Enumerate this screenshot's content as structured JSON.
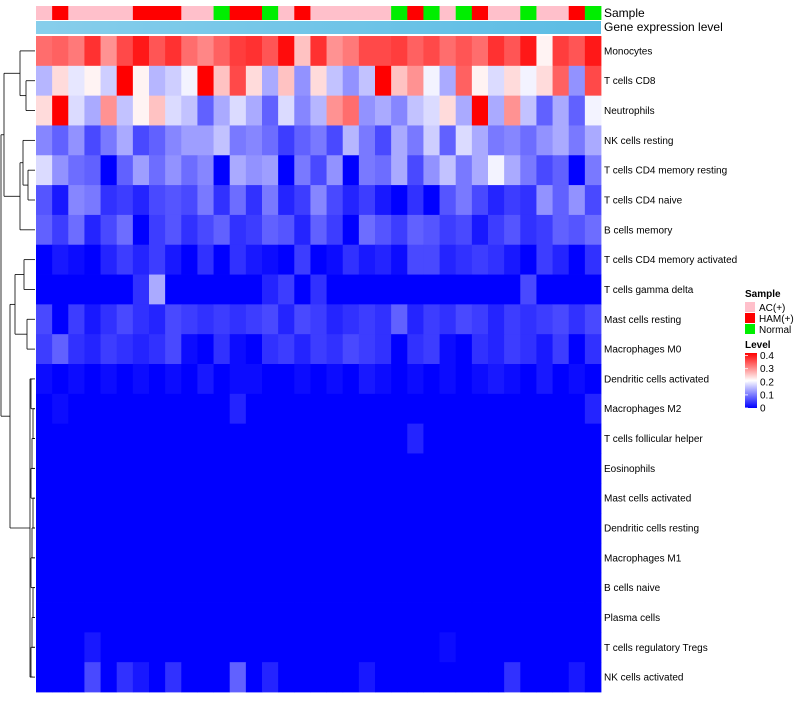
{
  "chart_data": {
    "type": "heatmap",
    "title": "",
    "colors": {
      "low": "#0000ff",
      "mid": "#ffffff",
      "high": "#ff0000",
      "gene_track": "#87ceeb",
      "gene_track_end": "#5bbce4",
      "dendrogram": "#000000"
    },
    "annotation_tracks": [
      {
        "name": "Sample"
      },
      {
        "name": "Gene expression level"
      }
    ],
    "sample_legend": {
      "title": "Sample",
      "entries": [
        {
          "label": "AC(+)",
          "color": "#ffc0cb"
        },
        {
          "label": "HAM(+)",
          "color": "#ff0000"
        },
        {
          "label": "Normal",
          "color": "#00ee00"
        }
      ]
    },
    "level_legend": {
      "title": "Level",
      "ticks": [
        "0.4",
        "0.3",
        "0.2",
        "0.1",
        "0"
      ],
      "tick_values": [
        0.4,
        0.3,
        0.2,
        0.1,
        0.0
      ],
      "range": [
        0,
        0.42
      ]
    },
    "sample_groups": [
      "AC(+)",
      "HAM(+)",
      "AC(+)",
      "AC(+)",
      "AC(+)",
      "AC(+)",
      "HAM(+)",
      "HAM(+)",
      "HAM(+)",
      "AC(+)",
      "AC(+)",
      "Normal",
      "HAM(+)",
      "HAM(+)",
      "Normal",
      "AC(+)",
      "HAM(+)",
      "AC(+)",
      "AC(+)",
      "AC(+)",
      "AC(+)",
      "AC(+)",
      "Normal",
      "HAM(+)",
      "Normal",
      "AC(+)",
      "Normal",
      "HAM(+)",
      "AC(+)",
      "AC(+)",
      "Normal",
      "AC(+)",
      "AC(+)",
      "HAM(+)",
      "Normal"
    ],
    "rows": [
      "Monocytes",
      "T cells CD8",
      "Neutrophils",
      "NK cells resting",
      "T cells CD4 memory resting",
      "T cells CD4 naive",
      "B cells memory",
      "T cells CD4 memory activated",
      "T cells gamma delta",
      "Mast cells resting",
      "Macrophages M0",
      "Dendritic cells activated",
      "Macrophages M2",
      "T cells follicular helper",
      "Eosinophils",
      "Mast cells activated",
      "Dendritic cells resting",
      "Macrophages M1",
      "B cells naive",
      "Plasma cells",
      "T cells regulatory  Tregs",
      "NK cells activated"
    ],
    "row_base": [
      0.33,
      0.16,
      0.15,
      0.12,
      0.1,
      0.08,
      0.07,
      0.03,
      0.01,
      0.06,
      0.05,
      0.01,
      0.01,
      0.01,
      0.0,
      0.0,
      0.0,
      0.0,
      0.0,
      0.0,
      0.0,
      0.01
    ],
    "values": [
      [
        0.33,
        0.34,
        0.32,
        0.38,
        0.3,
        0.36,
        0.4,
        0.35,
        0.38,
        0.33,
        0.31,
        0.34,
        0.37,
        0.38,
        0.35,
        0.41,
        0.26,
        0.38,
        0.3,
        0.32,
        0.36,
        0.36,
        0.37,
        0.34,
        0.36,
        0.33,
        0.35,
        0.33,
        0.38,
        0.35,
        0.4,
        0.22,
        0.37,
        0.35,
        0.4
      ],
      [
        0.15,
        0.24,
        0.19,
        0.22,
        0.17,
        0.42,
        0.22,
        0.15,
        0.17,
        0.2,
        0.42,
        0.26,
        0.36,
        0.24,
        0.14,
        0.26,
        0.12,
        0.24,
        0.16,
        0.12,
        0.16,
        0.42,
        0.26,
        0.3,
        0.2,
        0.14,
        0.34,
        0.22,
        0.18,
        0.24,
        0.2,
        0.24,
        0.34,
        0.12,
        0.36
      ],
      [
        0.24,
        0.42,
        0.18,
        0.14,
        0.3,
        0.16,
        0.22,
        0.26,
        0.18,
        0.16,
        0.08,
        0.14,
        0.18,
        0.14,
        0.08,
        0.18,
        0.11,
        0.15,
        0.3,
        0.33,
        0.12,
        0.14,
        0.11,
        0.16,
        0.18,
        0.24,
        0.14,
        0.42,
        0.14,
        0.3,
        0.16,
        0.08,
        0.14,
        0.08,
        0.2
      ],
      [
        0.11,
        0.08,
        0.12,
        0.06,
        0.1,
        0.14,
        0.06,
        0.08,
        0.11,
        0.13,
        0.13,
        0.16,
        0.1,
        0.11,
        0.09,
        0.05,
        0.08,
        0.1,
        0.06,
        0.15,
        0.1,
        0.06,
        0.14,
        0.1,
        0.17,
        0.08,
        0.18,
        0.14,
        0.1,
        0.11,
        0.09,
        0.12,
        0.14,
        0.1,
        0.14
      ],
      [
        0.18,
        0.12,
        0.09,
        0.08,
        0.0,
        0.08,
        0.13,
        0.09,
        0.12,
        0.09,
        0.11,
        0.0,
        0.14,
        0.12,
        0.13,
        0.0,
        0.1,
        0.06,
        0.12,
        0.0,
        0.1,
        0.09,
        0.14,
        0.06,
        0.12,
        0.16,
        0.1,
        0.14,
        0.2,
        0.14,
        0.1,
        0.06,
        0.08,
        0.0,
        0.1
      ],
      [
        0.07,
        0.02,
        0.11,
        0.1,
        0.04,
        0.05,
        0.03,
        0.06,
        0.07,
        0.06,
        0.1,
        0.04,
        0.09,
        0.04,
        0.1,
        0.03,
        0.05,
        0.11,
        0.06,
        0.03,
        0.05,
        0.02,
        0.0,
        0.04,
        0.0,
        0.07,
        0.1,
        0.06,
        0.03,
        0.05,
        0.04,
        0.12,
        0.08,
        0.12,
        0.06
      ],
      [
        0.08,
        0.05,
        0.09,
        0.03,
        0.06,
        0.09,
        0.0,
        0.05,
        0.07,
        0.04,
        0.06,
        0.08,
        0.04,
        0.05,
        0.08,
        0.07,
        0.03,
        0.08,
        0.05,
        0.0,
        0.09,
        0.07,
        0.05,
        0.08,
        0.07,
        0.05,
        0.06,
        0.02,
        0.05,
        0.07,
        0.04,
        0.05,
        0.08,
        0.07,
        0.09
      ],
      [
        0.0,
        0.02,
        0.01,
        0.0,
        0.03,
        0.05,
        0.03,
        0.05,
        0.02,
        0.0,
        0.04,
        0.0,
        0.04,
        0.02,
        0.01,
        0.0,
        0.05,
        0.0,
        0.01,
        0.04,
        0.02,
        0.03,
        0.01,
        0.06,
        0.06,
        0.03,
        0.04,
        0.05,
        0.04,
        0.02,
        0.0,
        0.05,
        0.03,
        0.0,
        0.04
      ],
      [
        0.0,
        0.0,
        0.0,
        0.0,
        0.0,
        0.0,
        0.04,
        0.14,
        0.0,
        0.0,
        0.0,
        0.0,
        0.0,
        0.0,
        0.03,
        0.05,
        0.0,
        0.04,
        0.0,
        0.0,
        0.0,
        0.0,
        0.0,
        0.0,
        0.0,
        0.0,
        0.0,
        0.0,
        0.0,
        0.0,
        0.06,
        0.0,
        0.0,
        0.0,
        0.0
      ],
      [
        0.06,
        0.0,
        0.05,
        0.02,
        0.04,
        0.06,
        0.04,
        0.03,
        0.06,
        0.05,
        0.04,
        0.05,
        0.04,
        0.05,
        0.06,
        0.03,
        0.06,
        0.05,
        0.03,
        0.04,
        0.05,
        0.04,
        0.08,
        0.03,
        0.05,
        0.04,
        0.06,
        0.05,
        0.03,
        0.05,
        0.04,
        0.05,
        0.06,
        0.04,
        0.06
      ],
      [
        0.05,
        0.08,
        0.04,
        0.03,
        0.05,
        0.04,
        0.03,
        0.04,
        0.06,
        0.01,
        0.0,
        0.04,
        0.01,
        0.0,
        0.04,
        0.05,
        0.03,
        0.05,
        0.04,
        0.06,
        0.05,
        0.04,
        0.0,
        0.04,
        0.05,
        0.01,
        0.0,
        0.04,
        0.03,
        0.05,
        0.04,
        0.02,
        0.05,
        0.0,
        0.04
      ],
      [
        0.01,
        0.0,
        0.01,
        0.0,
        0.01,
        0.0,
        0.01,
        0.0,
        0.01,
        0.0,
        0.02,
        0.0,
        0.01,
        0.01,
        0.0,
        0.0,
        0.01,
        0.0,
        0.01,
        0.0,
        0.02,
        0.01,
        0.0,
        0.01,
        0.0,
        0.01,
        0.0,
        0.01,
        0.02,
        0.01,
        0.0,
        0.02,
        0.0,
        0.01,
        0.0
      ],
      [
        0.0,
        0.01,
        0.0,
        0.0,
        0.0,
        0.0,
        0.0,
        0.0,
        0.0,
        0.0,
        0.0,
        0.0,
        0.03,
        0.0,
        0.0,
        0.0,
        0.0,
        0.0,
        0.0,
        0.0,
        0.0,
        0.0,
        0.0,
        0.0,
        0.0,
        0.0,
        0.0,
        0.0,
        0.0,
        0.0,
        0.0,
        0.0,
        0.0,
        0.0,
        0.03
      ],
      [
        0.0,
        0.0,
        0.0,
        0.0,
        0.0,
        0.0,
        0.0,
        0.0,
        0.0,
        0.0,
        0.0,
        0.0,
        0.0,
        0.0,
        0.0,
        0.0,
        0.0,
        0.0,
        0.0,
        0.0,
        0.0,
        0.0,
        0.0,
        0.03,
        0.0,
        0.0,
        0.0,
        0.0,
        0.0,
        0.0,
        0.0,
        0.0,
        0.0,
        0.0,
        0.0
      ],
      [
        0.0,
        0.0,
        0.0,
        0.0,
        0.0,
        0.0,
        0.0,
        0.0,
        0.0,
        0.0,
        0.0,
        0.0,
        0.0,
        0.0,
        0.0,
        0.0,
        0.0,
        0.0,
        0.0,
        0.0,
        0.0,
        0.0,
        0.0,
        0.0,
        0.0,
        0.0,
        0.0,
        0.0,
        0.0,
        0.0,
        0.0,
        0.0,
        0.0,
        0.0,
        0.0
      ],
      [
        0.0,
        0.0,
        0.0,
        0.0,
        0.0,
        0.0,
        0.0,
        0.0,
        0.0,
        0.0,
        0.0,
        0.0,
        0.0,
        0.0,
        0.0,
        0.0,
        0.0,
        0.0,
        0.0,
        0.0,
        0.0,
        0.0,
        0.0,
        0.0,
        0.0,
        0.0,
        0.0,
        0.0,
        0.0,
        0.0,
        0.0,
        0.0,
        0.0,
        0.0,
        0.0
      ],
      [
        0.0,
        0.0,
        0.0,
        0.0,
        0.0,
        0.0,
        0.0,
        0.0,
        0.0,
        0.0,
        0.0,
        0.0,
        0.0,
        0.0,
        0.0,
        0.0,
        0.0,
        0.0,
        0.0,
        0.0,
        0.0,
        0.0,
        0.0,
        0.0,
        0.0,
        0.0,
        0.0,
        0.0,
        0.0,
        0.0,
        0.0,
        0.0,
        0.0,
        0.0,
        0.0
      ],
      [
        0.0,
        0.0,
        0.0,
        0.0,
        0.0,
        0.0,
        0.0,
        0.0,
        0.0,
        0.0,
        0.0,
        0.0,
        0.0,
        0.0,
        0.0,
        0.0,
        0.0,
        0.0,
        0.0,
        0.0,
        0.0,
        0.0,
        0.0,
        0.0,
        0.0,
        0.0,
        0.0,
        0.0,
        0.0,
        0.0,
        0.0,
        0.0,
        0.0,
        0.0,
        0.0
      ],
      [
        0.0,
        0.0,
        0.0,
        0.0,
        0.0,
        0.0,
        0.0,
        0.0,
        0.0,
        0.0,
        0.0,
        0.0,
        0.0,
        0.0,
        0.0,
        0.0,
        0.0,
        0.0,
        0.0,
        0.0,
        0.0,
        0.0,
        0.0,
        0.0,
        0.0,
        0.0,
        0.0,
        0.0,
        0.0,
        0.0,
        0.0,
        0.0,
        0.0,
        0.0,
        0.0
      ],
      [
        0.0,
        0.0,
        0.0,
        0.0,
        0.0,
        0.0,
        0.0,
        0.0,
        0.0,
        0.0,
        0.0,
        0.0,
        0.0,
        0.0,
        0.0,
        0.0,
        0.0,
        0.0,
        0.0,
        0.0,
        0.0,
        0.0,
        0.0,
        0.0,
        0.0,
        0.0,
        0.0,
        0.0,
        0.0,
        0.0,
        0.0,
        0.0,
        0.0,
        0.0,
        0.0
      ],
      [
        0.0,
        0.0,
        0.0,
        0.02,
        0.0,
        0.0,
        0.0,
        0.0,
        0.0,
        0.0,
        0.0,
        0.0,
        0.0,
        0.0,
        0.0,
        0.0,
        0.0,
        0.0,
        0.0,
        0.0,
        0.0,
        0.0,
        0.0,
        0.0,
        0.0,
        0.01,
        0.0,
        0.0,
        0.0,
        0.0,
        0.0,
        0.0,
        0.0,
        0.0,
        0.0
      ],
      [
        0.0,
        0.0,
        0.0,
        0.06,
        0.0,
        0.04,
        0.02,
        0.0,
        0.04,
        0.0,
        0.0,
        0.0,
        0.08,
        0.0,
        0.03,
        0.0,
        0.0,
        0.0,
        0.0,
        0.0,
        0.02,
        0.0,
        0.0,
        0.0,
        0.0,
        0.0,
        0.0,
        0.0,
        0.0,
        0.04,
        0.0,
        0.0,
        0.0,
        0.02,
        0.0
      ]
    ]
  }
}
